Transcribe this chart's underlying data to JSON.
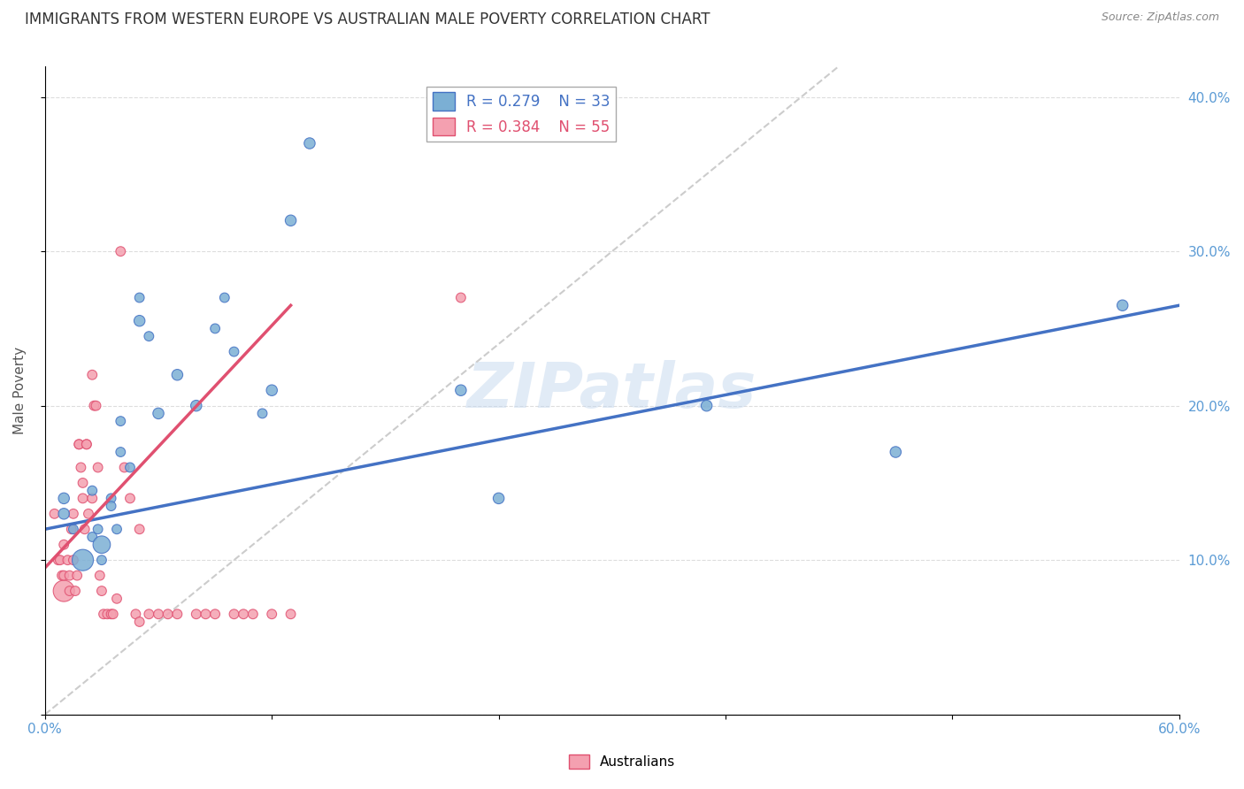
{
  "title": "IMMIGRANTS FROM WESTERN EUROPE VS AUSTRALIAN MALE POVERTY CORRELATION CHART",
  "source": "Source: ZipAtlas.com",
  "xlabel": "",
  "ylabel": "Male Poverty",
  "watermark": "ZIPatlas",
  "legend_blue_R": "R = 0.279",
  "legend_blue_N": "N = 33",
  "legend_pink_R": "R = 0.384",
  "legend_pink_N": "N = 55",
  "xmin": 0.0,
  "xmax": 0.6,
  "ymin": 0.0,
  "ymax": 0.42,
  "blue_color": "#7bafd4",
  "pink_color": "#f4a0b0",
  "blue_line_color": "#4472c4",
  "pink_line_color": "#e05070",
  "diag_color": "#cccccc",
  "right_axis_color": "#5b9bd5",
  "blue_scatter_x": [
    0.01,
    0.01,
    0.015,
    0.02,
    0.025,
    0.025,
    0.028,
    0.03,
    0.03,
    0.035,
    0.035,
    0.038,
    0.04,
    0.04,
    0.045,
    0.05,
    0.05,
    0.055,
    0.06,
    0.07,
    0.08,
    0.09,
    0.095,
    0.1,
    0.115,
    0.12,
    0.13,
    0.14,
    0.22,
    0.24,
    0.35,
    0.45,
    0.57
  ],
  "blue_scatter_y": [
    0.13,
    0.14,
    0.12,
    0.1,
    0.115,
    0.145,
    0.12,
    0.11,
    0.1,
    0.14,
    0.135,
    0.12,
    0.17,
    0.19,
    0.16,
    0.27,
    0.255,
    0.245,
    0.195,
    0.22,
    0.2,
    0.25,
    0.27,
    0.235,
    0.195,
    0.21,
    0.32,
    0.37,
    0.21,
    0.14,
    0.2,
    0.17,
    0.265
  ],
  "blue_scatter_size": [
    80,
    80,
    60,
    300,
    60,
    60,
    60,
    200,
    60,
    60,
    60,
    60,
    60,
    60,
    60,
    60,
    80,
    60,
    80,
    80,
    80,
    60,
    60,
    60,
    60,
    80,
    80,
    80,
    80,
    80,
    80,
    80,
    80
  ],
  "pink_scatter_x": [
    0.005,
    0.007,
    0.008,
    0.009,
    0.01,
    0.01,
    0.01,
    0.012,
    0.013,
    0.013,
    0.014,
    0.015,
    0.015,
    0.016,
    0.017,
    0.018,
    0.018,
    0.019,
    0.02,
    0.02,
    0.021,
    0.022,
    0.022,
    0.023,
    0.025,
    0.025,
    0.026,
    0.027,
    0.028,
    0.029,
    0.03,
    0.031,
    0.033,
    0.035,
    0.036,
    0.038,
    0.04,
    0.042,
    0.045,
    0.048,
    0.05,
    0.055,
    0.06,
    0.065,
    0.07,
    0.08,
    0.085,
    0.09,
    0.1,
    0.105,
    0.11,
    0.12,
    0.13,
    0.05,
    0.22
  ],
  "pink_scatter_y": [
    0.13,
    0.1,
    0.1,
    0.09,
    0.08,
    0.09,
    0.11,
    0.1,
    0.09,
    0.08,
    0.12,
    0.1,
    0.13,
    0.08,
    0.09,
    0.175,
    0.175,
    0.16,
    0.14,
    0.15,
    0.12,
    0.175,
    0.175,
    0.13,
    0.14,
    0.22,
    0.2,
    0.2,
    0.16,
    0.09,
    0.08,
    0.065,
    0.065,
    0.065,
    0.065,
    0.075,
    0.3,
    0.16,
    0.14,
    0.065,
    0.06,
    0.065,
    0.065,
    0.065,
    0.065,
    0.065,
    0.065,
    0.065,
    0.065,
    0.065,
    0.065,
    0.065,
    0.065,
    0.12,
    0.27
  ],
  "pink_scatter_size": [
    60,
    60,
    60,
    60,
    300,
    60,
    60,
    60,
    60,
    60,
    60,
    60,
    60,
    60,
    60,
    60,
    60,
    60,
    60,
    60,
    60,
    60,
    60,
    60,
    60,
    60,
    60,
    60,
    60,
    60,
    60,
    60,
    60,
    60,
    60,
    60,
    60,
    60,
    60,
    60,
    60,
    60,
    60,
    60,
    60,
    60,
    60,
    60,
    60,
    60,
    60,
    60,
    60,
    60,
    60
  ],
  "blue_line_x": [
    0.0,
    0.6
  ],
  "blue_line_y": [
    0.12,
    0.265
  ],
  "pink_line_x": [
    0.0,
    0.13
  ],
  "pink_line_y": [
    0.095,
    0.265
  ],
  "diag_line_x": [
    0.0,
    0.42
  ],
  "diag_line_y": [
    0.0,
    0.42
  ],
  "yticks": [
    0.0,
    0.1,
    0.2,
    0.3,
    0.4
  ],
  "ytick_labels": [
    "",
    "10.0%",
    "20.0%",
    "30.0%",
    "40.0%"
  ],
  "xticks": [
    0.0,
    0.12,
    0.24,
    0.36,
    0.48,
    0.6
  ],
  "xtick_labels": [
    "0.0%",
    "",
    "",
    "",
    "",
    "60.0%"
  ]
}
